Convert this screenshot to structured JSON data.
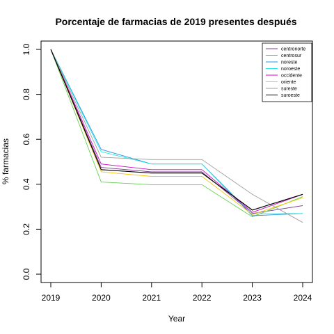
{
  "chart_data": {
    "type": "line",
    "title": "Porcentaje de farmacias de 2019 presentes después",
    "xlabel": "Year",
    "ylabel": "% farmacias",
    "x": [
      2019,
      2020,
      2021,
      2022,
      2023,
      2024
    ],
    "xlim": [
      2019,
      2024
    ],
    "ylim": [
      0,
      1
    ],
    "y_ticks": [
      "0.0",
      "0.2",
      "0.4",
      "0.6",
      "0.8",
      "1.0"
    ],
    "x_ticks": [
      "2019",
      "2020",
      "2021",
      "2022",
      "2023",
      "2024"
    ],
    "grid": false,
    "legend_position": "top-right",
    "series": [
      {
        "name": "centronorte",
        "color": "#7e3f98",
        "values": [
          1.0,
          0.475,
          0.455,
          0.455,
          0.27,
          0.305
        ]
      },
      {
        "name": "centrosur",
        "color": "#61d04f",
        "values": [
          1.0,
          0.41,
          0.398,
          0.398,
          0.255,
          0.345
        ]
      },
      {
        "name": "noreste",
        "color": "#2297e6",
        "values": [
          1.0,
          0.555,
          0.49,
          0.49,
          0.26,
          0.27
        ]
      },
      {
        "name": "noroeste",
        "color": "#28e2e5",
        "values": [
          1.0,
          0.545,
          0.49,
          0.49,
          0.268,
          0.27
        ]
      },
      {
        "name": "occidente",
        "color": "#cd0bbc",
        "values": [
          1.0,
          0.49,
          0.465,
          0.465,
          0.275,
          0.355
        ]
      },
      {
        "name": "oriente",
        "color": "#f5c710",
        "values": [
          1.0,
          0.455,
          0.435,
          0.435,
          0.265,
          0.34
        ]
      },
      {
        "name": "sureste",
        "color": "#9e9e9e",
        "values": [
          1.0,
          0.52,
          0.51,
          0.51,
          0.355,
          0.23
        ]
      },
      {
        "name": "suroeste",
        "color": "#000000",
        "values": [
          1.0,
          0.465,
          0.45,
          0.45,
          0.285,
          0.355
        ]
      }
    ]
  }
}
